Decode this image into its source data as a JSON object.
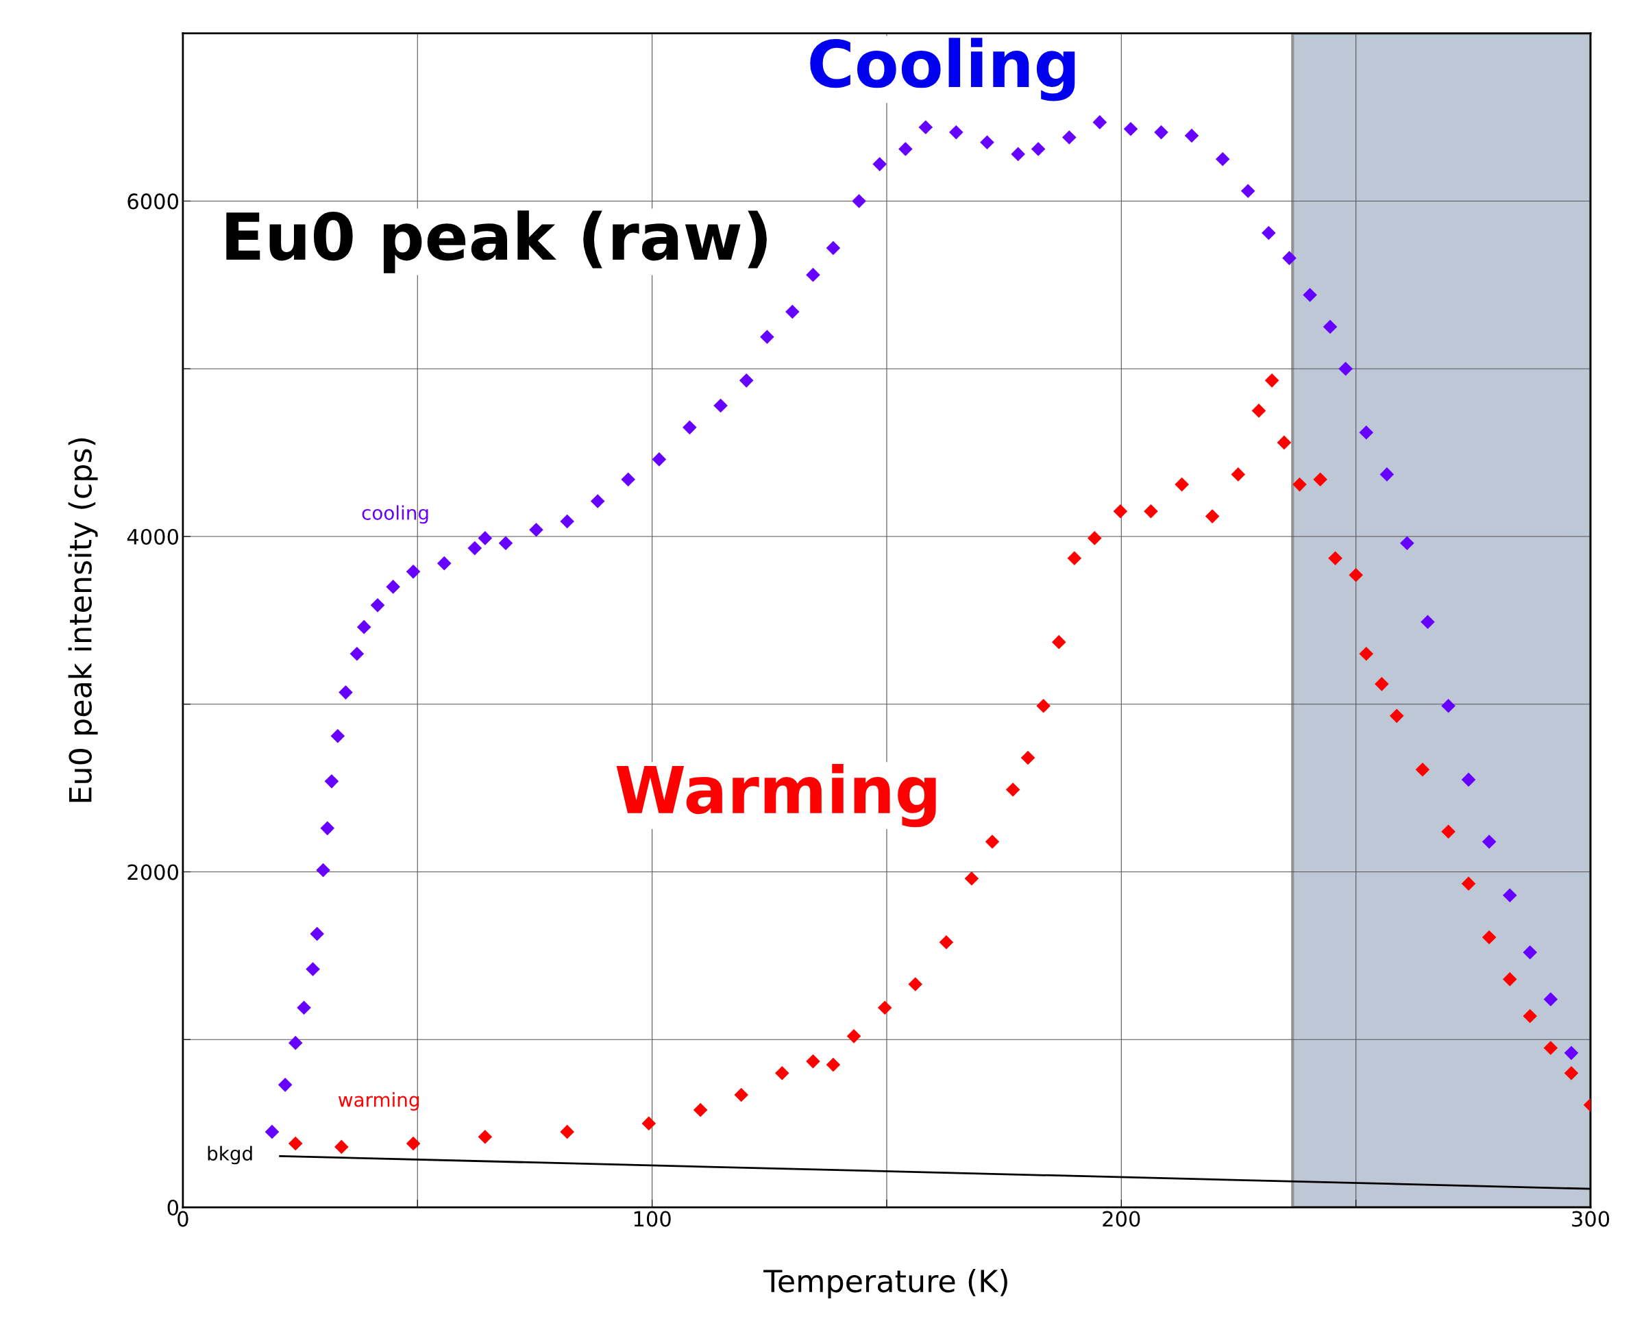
{
  "chart_data": {
    "type": "scatter",
    "xlabel": "Temperature (K)",
    "ylabel": "Eu0 peak intensity (cps)",
    "xlim": [
      0,
      300
    ],
    "ylim": [
      0,
      7000
    ],
    "xticks": [
      0,
      {
        "value": 50,
        "label": null
      },
      100,
      {
        "value": 150,
        "label": null
      },
      200,
      {
        "value": 250,
        "label": null
      },
      300
    ],
    "yticks": [
      0,
      {
        "value": 1000,
        "label": null
      },
      2000,
      {
        "value": 3000,
        "label": null
      },
      4000,
      {
        "value": 5000,
        "label": null
      },
      6000
    ],
    "grid": true,
    "marker": "diamond",
    "bands": [
      {
        "axis": "x",
        "from": 236.5,
        "to": 300,
        "color": "#b6c2d2"
      }
    ],
    "annotations": [
      "Cooling",
      "Eu0 peak (raw)",
      "Warming",
      "bkgd"
    ],
    "series": [
      {
        "name": "cooling",
        "color": "#6600ff",
        "x": [
          19,
          21.8,
          24,
          25.8,
          27.7,
          28.6,
          29.9,
          30.8,
          31.7,
          33,
          34.7,
          37.1,
          38.6,
          41.5,
          44.8,
          49.1,
          55.7,
          62.2,
          64.4,
          68.8,
          75.3,
          81.9,
          88.4,
          94.9,
          101.5,
          108,
          114.6,
          120.1,
          124.5,
          129.9,
          134.3,
          138.6,
          144.1,
          148.5,
          154,
          158.3,
          164.8,
          171.4,
          178,
          182.3,
          188.9,
          195.4,
          202,
          208.5,
          215,
          221.6,
          227,
          231.4,
          235.8,
          240.2,
          244.5,
          247.8,
          252.2,
          256.6,
          260.9,
          265.3,
          269.7,
          274,
          278.4,
          282.8,
          287.1,
          291.5,
          295.9
        ],
        "values": [
          450,
          730,
          980,
          1190,
          1420,
          1630,
          2010,
          2260,
          2540,
          2810,
          3070,
          3300,
          3460,
          3590,
          3700,
          3790,
          3840,
          3930,
          3990,
          3960,
          4040,
          4090,
          4210,
          4340,
          4460,
          4650,
          4780,
          4930,
          5190,
          5340,
          5560,
          5720,
          6000,
          6220,
          6310,
          6440,
          6410,
          6350,
          6280,
          6310,
          6380,
          6470,
          6430,
          6410,
          6390,
          6250,
          6060,
          5810,
          5660,
          5440,
          5250,
          5000,
          4620,
          4370,
          3960,
          3490,
          2990,
          2550,
          2180,
          1860,
          1520,
          1240,
          920
        ]
      },
      {
        "name": "warming",
        "color": "#ff0000",
        "x": [
          24,
          33.8,
          49.1,
          64.4,
          81.9,
          99.3,
          110.3,
          119,
          127.7,
          134.3,
          138.6,
          143,
          149.6,
          156.1,
          162.7,
          168.1,
          172.5,
          176.9,
          180.1,
          183.4,
          186.7,
          190,
          194.3,
          199.8,
          206.3,
          212.9,
          219.4,
          224.9,
          229.3,
          232.1,
          234.7,
          238,
          242.4,
          245.6,
          250,
          252.2,
          255.5,
          258.7,
          264.2,
          269.7,
          274,
          278.4,
          282.8,
          287.1,
          291.5,
          295.9,
          300
        ],
        "values": [
          380,
          360,
          380,
          420,
          450,
          500,
          580,
          670,
          800,
          870,
          850,
          1020,
          1190,
          1330,
          1580,
          1960,
          2180,
          2490,
          2680,
          2990,
          3370,
          3870,
          3990,
          4150,
          4150,
          4310,
          4120,
          4370,
          4750,
          4930,
          4560,
          4310,
          4340,
          3870,
          3770,
          3300,
          3120,
          2930,
          2610,
          2240,
          1930,
          1610,
          1360,
          1140,
          950,
          800,
          610
        ]
      },
      {
        "type": "line",
        "marker": "none",
        "color": "#000000",
        "x": [
          20.7,
          300
        ],
        "values": [
          305,
          110
        ]
      }
    ]
  }
}
